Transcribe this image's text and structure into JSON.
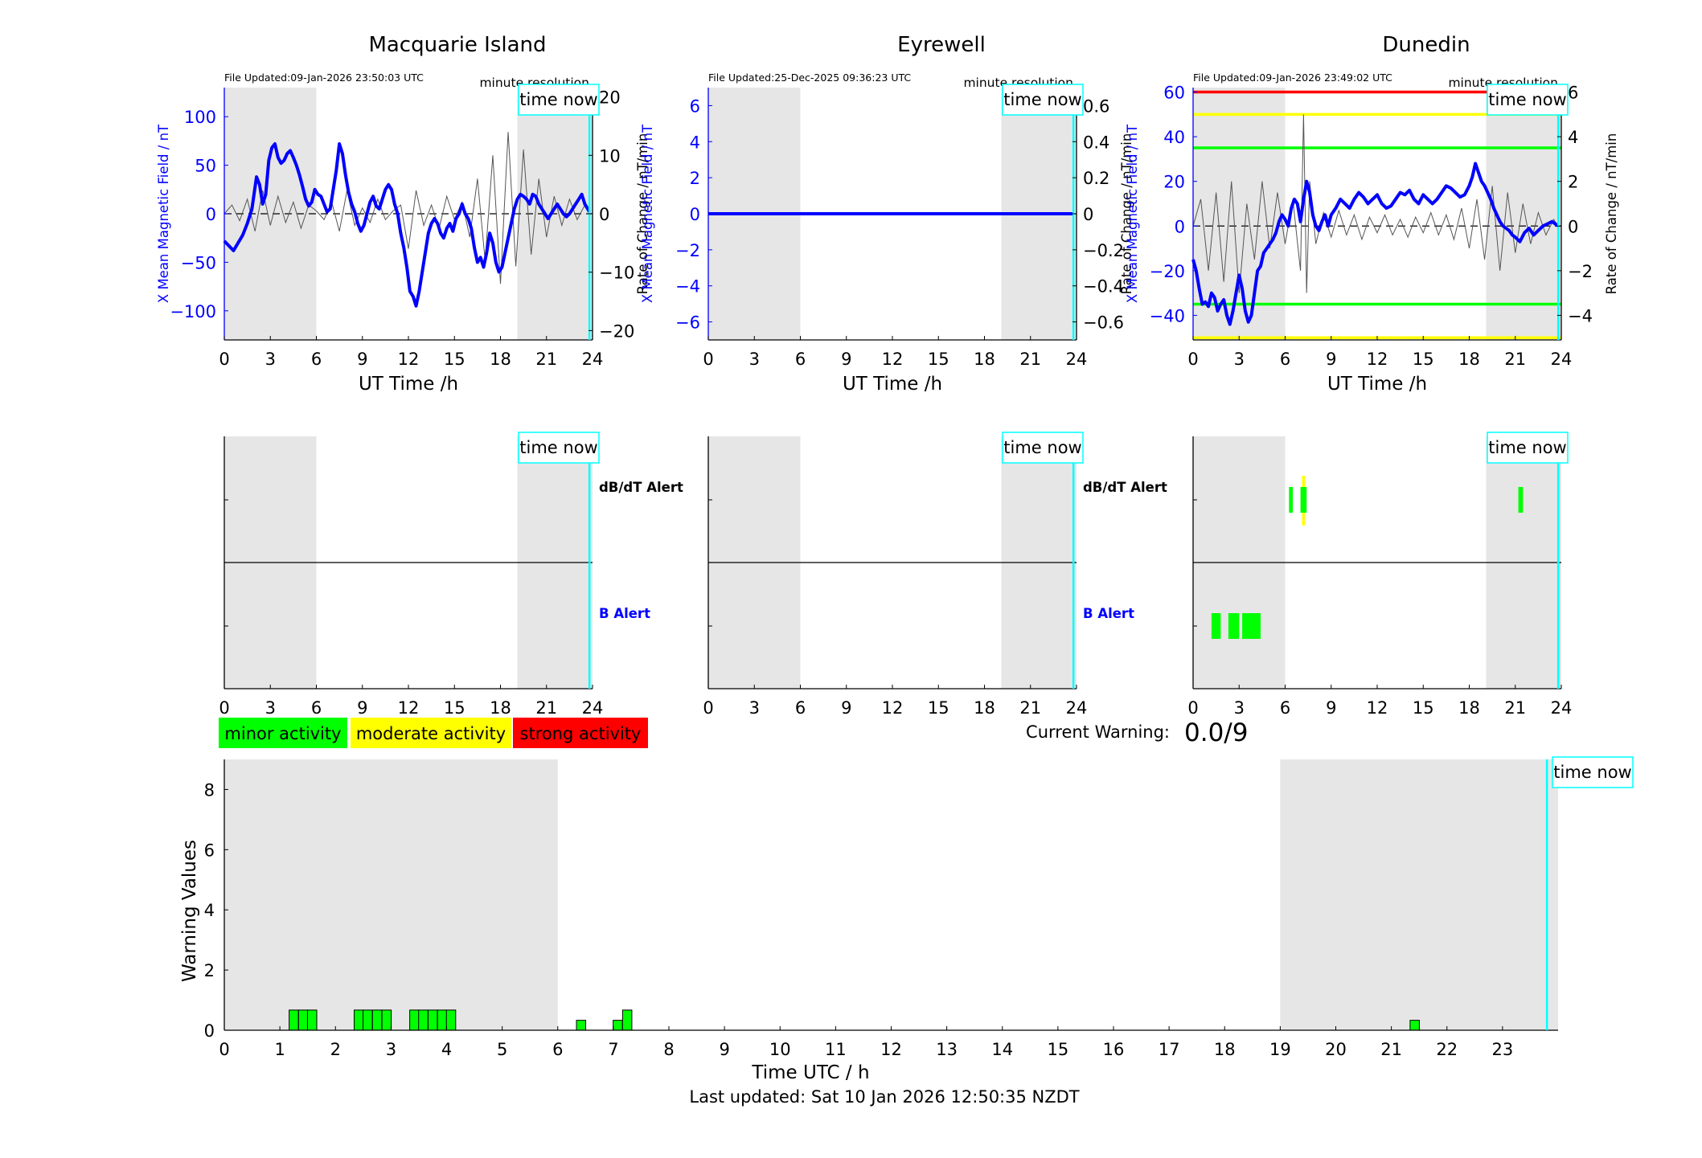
{
  "page": {
    "last_updated": "Last updated: Sat 10 Jan 2026 12:50:35 NZDT",
    "current_warning_label": "Current Warning:",
    "current_warning_value": "0.0/9",
    "time_now_label": "time now",
    "legend": [
      {
        "label": "minor activity",
        "color": "#00ff00"
      },
      {
        "label": "moderate activity",
        "color": "#ffff00"
      },
      {
        "label": "strong activity",
        "color": "#ff0000"
      }
    ]
  },
  "colors": {
    "field_line": "#0000ff",
    "rate_line": "#555555",
    "night_shade": "#e6e6e6",
    "time_now": "#00ffff",
    "alert_green": "#00ff00",
    "alert_yellow": "#ffff00",
    "alert_red": "#ff0000"
  },
  "chart_data": [
    {
      "id": "macquarie-field",
      "type": "line",
      "title": "Macquarie Island",
      "file_updated": "File Updated:09-Jan-2026 23:50:03 UTC",
      "resolution": "minute resolution",
      "xlabel": "UT Time /h",
      "ylabel": "X Mean Magnetic Field / nT",
      "y2label": "Rate of Change / nT/min",
      "xlim": [
        0,
        24
      ],
      "ylim": [
        -130,
        130
      ],
      "y2lim": [
        -21.6,
        21.6
      ],
      "xticks": [
        0,
        3,
        6,
        9,
        12,
        15,
        18,
        21,
        24
      ],
      "yticks": [
        -100,
        -50,
        0,
        50,
        100
      ],
      "y2ticks": [
        -20,
        -10,
        0,
        10,
        20
      ],
      "night_bands": [
        [
          0,
          6
        ],
        [
          19.1,
          24
        ]
      ],
      "time_now": 23.8,
      "zero_line": true,
      "series": [
        {
          "role": "field",
          "x": [
            0,
            0.3,
            0.6,
            0.9,
            1.2,
            1.5,
            1.8,
            2.1,
            2.3,
            2.5,
            2.7,
            2.9,
            3.1,
            3.3,
            3.5,
            3.7,
            3.9,
            4.1,
            4.3,
            4.5,
            4.7,
            4.9,
            5.1,
            5.3,
            5.5,
            5.7,
            5.9,
            6.1,
            6.3,
            6.5,
            6.7,
            6.9,
            7.1,
            7.3,
            7.5,
            7.7,
            7.9,
            8.1,
            8.3,
            8.5,
            8.7,
            8.9,
            9.1,
            9.3,
            9.5,
            9.7,
            9.9,
            10.1,
            10.3,
            10.5,
            10.7,
            10.9,
            11.1,
            11.3,
            11.5,
            11.7,
            11.9,
            12.1,
            12.3,
            12.5,
            12.7,
            12.9,
            13.1,
            13.3,
            13.5,
            13.7,
            13.9,
            14.1,
            14.3,
            14.5,
            14.7,
            14.9,
            15.1,
            15.3,
            15.5,
            15.7,
            15.9,
            16.1,
            16.3,
            16.5,
            16.7,
            16.9,
            17.1,
            17.3,
            17.5,
            17.7,
            17.9,
            18.1,
            18.3,
            18.5,
            18.7,
            18.9,
            19.1,
            19.3,
            19.5,
            19.7,
            19.9,
            20.1,
            20.3,
            20.5,
            20.7,
            20.9,
            21.1,
            21.3,
            21.5,
            21.7,
            21.9,
            22.1,
            22.3,
            22.5,
            22.7,
            22.9,
            23.1,
            23.3,
            23.5,
            23.8
          ],
          "values": [
            -28,
            -33,
            -38,
            -30,
            -22,
            -10,
            5,
            38,
            30,
            10,
            20,
            55,
            68,
            72,
            58,
            52,
            55,
            62,
            65,
            58,
            50,
            40,
            28,
            15,
            8,
            12,
            25,
            20,
            18,
            10,
            2,
            5,
            25,
            45,
            72,
            62,
            40,
            22,
            10,
            2,
            -10,
            -18,
            -12,
            0,
            12,
            18,
            8,
            5,
            15,
            25,
            30,
            25,
            10,
            0,
            -20,
            -35,
            -55,
            -80,
            -85,
            -95,
            -80,
            -60,
            -40,
            -20,
            -10,
            -5,
            -10,
            -20,
            -25,
            -15,
            -10,
            -18,
            -5,
            0,
            10,
            0,
            -5,
            -15,
            -35,
            -50,
            -45,
            -55,
            -40,
            -20,
            -30,
            -50,
            -60,
            -55,
            -40,
            -25,
            -10,
            5,
            15,
            20,
            18,
            15,
            10,
            20,
            18,
            10,
            5,
            0,
            -5,
            0,
            5,
            10,
            5,
            0,
            -3,
            0,
            5,
            10,
            15,
            20,
            10,
            2
          ]
        },
        {
          "role": "rate",
          "x": [
            0,
            0.5,
            1,
            1.5,
            2,
            2.5,
            3,
            3.5,
            4,
            4.5,
            5,
            5.5,
            6,
            6.5,
            7,
            7.5,
            8,
            8.5,
            9,
            9.5,
            10,
            10.5,
            11,
            11.5,
            12,
            12.5,
            13,
            13.5,
            14,
            14.5,
            15,
            15.5,
            16,
            16.5,
            17,
            17.5,
            18,
            18.5,
            19,
            19.5,
            20,
            20.5,
            21,
            21.5,
            22,
            22.5,
            23,
            23.5,
            23.8
          ],
          "values": [
            0,
            1.5,
            -1.2,
            2.5,
            -3,
            4,
            -2,
            3,
            -1.5,
            2,
            -2.5,
            1.5,
            0.5,
            -1,
            2,
            -3,
            4,
            -2,
            1,
            -1.5,
            2.5,
            -1,
            0.5,
            1.5,
            -6,
            4,
            -2,
            1.5,
            -2.5,
            3,
            -1,
            2,
            -4,
            6,
            -8,
            10,
            -12,
            14,
            -9,
            11,
            -7,
            6,
            -4,
            3,
            -2,
            2.5,
            -1,
            1.5,
            0
          ]
        }
      ]
    },
    {
      "id": "eyrewell-field",
      "type": "line",
      "title": "Eyrewell",
      "file_updated": "File Updated:25-Dec-2025 09:36:23 UTC",
      "resolution": "minute resolution",
      "xlabel": "UT Time /h",
      "ylabel": "X Mean Magnetic Field / nT",
      "y2label": "Rate of Change / nT/min",
      "xlim": [
        0,
        24
      ],
      "ylim": [
        -7,
        7
      ],
      "y2lim": [
        -0.7,
        0.7
      ],
      "xticks": [
        0,
        3,
        6,
        9,
        12,
        15,
        18,
        21,
        24
      ],
      "yticks": [
        -6,
        -4,
        -2,
        0,
        2,
        4,
        6
      ],
      "y2ticks": [
        -0.6,
        -0.4,
        -0.2,
        0,
        0.2,
        0.4,
        0.6
      ],
      "night_bands": [
        [
          0,
          6
        ],
        [
          19.1,
          24
        ]
      ],
      "time_now": 23.8,
      "zero_line": true,
      "series": [
        {
          "role": "field",
          "x": [
            0,
            23.8
          ],
          "values": [
            0,
            0
          ]
        },
        {
          "role": "rate",
          "x": [
            0,
            23.8
          ],
          "values": [
            0,
            0
          ]
        }
      ]
    },
    {
      "id": "dunedin-field",
      "type": "line",
      "title": "Dunedin",
      "file_updated": "File Updated:09-Jan-2026 23:49:02 UTC",
      "resolution": "minute resolution",
      "xlabel": "UT Time /h",
      "ylabel": "X Mean Magnetic Field / nT",
      "y2label": "Rate of Change / nT/min",
      "xlim": [
        0,
        24
      ],
      "ylim": [
        -51,
        62
      ],
      "y2lim": [
        -5.1,
        6.2
      ],
      "xticks": [
        0,
        3,
        6,
        9,
        12,
        15,
        18,
        21,
        24
      ],
      "yticks": [
        -40,
        -20,
        0,
        20,
        40,
        60
      ],
      "y2ticks": [
        -4,
        -2,
        0,
        2,
        4,
        6
      ],
      "night_bands": [
        [
          0,
          6
        ],
        [
          19.1,
          24
        ]
      ],
      "time_now": 23.8,
      "zero_line": true,
      "thresholds": [
        {
          "value": 60,
          "color": "#ff0000"
        },
        {
          "value": 50,
          "color": "#ffff00"
        },
        {
          "value": 35,
          "color": "#00ff00"
        },
        {
          "value": -35,
          "color": "#00ff00"
        },
        {
          "value": -50,
          "color": "#ffff00"
        }
      ],
      "series": [
        {
          "role": "field",
          "x": [
            0,
            0.2,
            0.4,
            0.6,
            0.8,
            1.0,
            1.2,
            1.4,
            1.6,
            1.8,
            2.0,
            2.2,
            2.4,
            2.6,
            2.8,
            3.0,
            3.2,
            3.4,
            3.6,
            3.8,
            4.0,
            4.2,
            4.4,
            4.6,
            4.8,
            5.0,
            5.2,
            5.4,
            5.6,
            5.8,
            6.0,
            6.2,
            6.4,
            6.6,
            6.8,
            7.0,
            7.2,
            7.4,
            7.6,
            7.8,
            8.0,
            8.2,
            8.4,
            8.6,
            8.8,
            9.0,
            9.3,
            9.6,
            9.9,
            10.2,
            10.5,
            10.8,
            11.1,
            11.4,
            11.7,
            12.0,
            12.3,
            12.6,
            12.9,
            13.2,
            13.5,
            13.8,
            14.1,
            14.4,
            14.7,
            15.0,
            15.3,
            15.6,
            15.9,
            16.2,
            16.5,
            16.8,
            17.1,
            17.4,
            17.7,
            18.0,
            18.2,
            18.4,
            18.6,
            18.8,
            19.0,
            19.2,
            19.4,
            19.6,
            19.8,
            20.0,
            20.2,
            20.4,
            20.6,
            20.8,
            21.0,
            21.3,
            21.6,
            21.9,
            22.2,
            22.5,
            22.8,
            23.1,
            23.4,
            23.8
          ],
          "values": [
            -15,
            -20,
            -28,
            -35,
            -34,
            -36,
            -30,
            -32,
            -38,
            -35,
            -33,
            -40,
            -44,
            -38,
            -30,
            -22,
            -28,
            -38,
            -43,
            -40,
            -30,
            -20,
            -18,
            -12,
            -10,
            -8,
            -6,
            -3,
            2,
            5,
            3,
            0,
            8,
            12,
            10,
            2,
            12,
            20,
            15,
            5,
            0,
            -2,
            2,
            5,
            0,
            5,
            8,
            12,
            10,
            8,
            12,
            15,
            13,
            10,
            12,
            14,
            10,
            8,
            9,
            12,
            15,
            14,
            16,
            12,
            10,
            14,
            12,
            10,
            12,
            15,
            18,
            17,
            15,
            13,
            14,
            18,
            22,
            28,
            24,
            20,
            18,
            15,
            12,
            8,
            5,
            2,
            0,
            -1,
            -2,
            -4,
            -5,
            -7,
            -3,
            -1,
            -4,
            -2,
            0,
            1,
            2,
            0
          ]
        },
        {
          "role": "rate",
          "x": [
            0,
            0.5,
            1,
            1.5,
            2,
            2.5,
            3,
            3.5,
            4,
            4.5,
            5,
            5.5,
            6,
            6.5,
            7,
            7.2,
            7.4,
            7.6,
            8,
            8.5,
            9,
            9.5,
            10,
            10.5,
            11,
            11.5,
            12,
            12.5,
            13,
            13.5,
            14,
            14.5,
            15,
            15.5,
            16,
            16.5,
            17,
            17.5,
            18,
            18.5,
            19,
            19.5,
            20,
            20.5,
            21,
            21.5,
            22,
            22.5,
            23,
            23.5,
            23.8
          ],
          "values": [
            0,
            1.2,
            -2,
            1.5,
            -2.5,
            2,
            -3,
            1,
            -1.5,
            2,
            -1,
            1.5,
            -0.8,
            1.2,
            -2,
            5,
            -3,
            2,
            -0.8,
            0.6,
            -0.5,
            0.7,
            -0.4,
            0.5,
            -0.6,
            0.4,
            -0.3,
            0.5,
            -0.4,
            0.3,
            -0.5,
            0.4,
            -0.3,
            0.6,
            -0.4,
            0.5,
            -0.6,
            0.8,
            -1,
            1.2,
            -1.5,
            1.8,
            -2,
            1.5,
            -1.2,
            1,
            -0.8,
            0.6,
            -0.4,
            0.3,
            0
          ]
        }
      ]
    },
    {
      "id": "macquarie-alert",
      "type": "bar",
      "xlim": [
        0,
        24
      ],
      "xticks": [
        0,
        3,
        6,
        9,
        12,
        15,
        18,
        21,
        24
      ],
      "night_bands": [
        [
          0,
          6
        ],
        [
          19.1,
          24
        ]
      ],
      "time_now": 23.8,
      "labels": {
        "dbdt": "dB/dT Alert",
        "b": "B Alert"
      },
      "dbdt_bars": [],
      "b_bars": []
    },
    {
      "id": "eyrewell-alert",
      "type": "bar",
      "xlim": [
        0,
        24
      ],
      "xticks": [
        0,
        3,
        6,
        9,
        12,
        15,
        18,
        21,
        24
      ],
      "night_bands": [
        [
          0,
          6
        ],
        [
          19.1,
          24
        ]
      ],
      "time_now": 23.8,
      "labels": {
        "dbdt": "dB/dT Alert",
        "b": "B Alert"
      },
      "dbdt_bars": [],
      "b_bars": []
    },
    {
      "id": "dunedin-alert",
      "type": "bar",
      "xlim": [
        0,
        24
      ],
      "xticks": [
        0,
        3,
        6,
        9,
        12,
        15,
        18,
        21,
        24
      ],
      "night_bands": [
        [
          0,
          6
        ],
        [
          19.1,
          24
        ]
      ],
      "time_now": 23.8,
      "dbdt_bars": [
        {
          "x0": 6.25,
          "x1": 6.5,
          "level": "minor"
        },
        {
          "x0": 7.0,
          "x1": 7.4,
          "level": "moderate"
        },
        {
          "x0": 21.2,
          "x1": 21.5,
          "level": "minor"
        }
      ],
      "b_bars": [
        {
          "x0": 1.2,
          "x1": 1.8,
          "level": "minor"
        },
        {
          "x0": 2.3,
          "x1": 3.0,
          "level": "minor"
        },
        {
          "x0": 3.2,
          "x1": 4.4,
          "level": "minor"
        }
      ]
    },
    {
      "id": "warning-values",
      "type": "bar",
      "xlabel": "Time UTC / h",
      "ylabel": "Warning Values",
      "xlim": [
        0,
        24
      ],
      "ylim": [
        0,
        9
      ],
      "xticks": [
        0,
        1,
        2,
        3,
        4,
        5,
        6,
        7,
        8,
        9,
        10,
        11,
        12,
        13,
        14,
        15,
        16,
        17,
        18,
        19,
        20,
        21,
        22,
        23
      ],
      "yticks": [
        0,
        2,
        4,
        6,
        8
      ],
      "night_bands": [
        [
          0,
          6
        ],
        [
          19,
          24
        ]
      ],
      "time_now": 23.8,
      "bars": [
        {
          "x": 1.25,
          "value": 0.67
        },
        {
          "x": 1.42,
          "value": 0.67
        },
        {
          "x": 1.58,
          "value": 0.67
        },
        {
          "x": 2.42,
          "value": 0.67
        },
        {
          "x": 2.58,
          "value": 0.67
        },
        {
          "x": 2.75,
          "value": 0.67
        },
        {
          "x": 2.92,
          "value": 0.67
        },
        {
          "x": 3.42,
          "value": 0.67
        },
        {
          "x": 3.58,
          "value": 0.67
        },
        {
          "x": 3.75,
          "value": 0.67
        },
        {
          "x": 3.92,
          "value": 0.67
        },
        {
          "x": 4.08,
          "value": 0.67
        },
        {
          "x": 6.42,
          "value": 0.33
        },
        {
          "x": 7.08,
          "value": 0.33
        },
        {
          "x": 7.25,
          "value": 0.67
        },
        {
          "x": 21.42,
          "value": 0.33
        }
      ]
    }
  ]
}
